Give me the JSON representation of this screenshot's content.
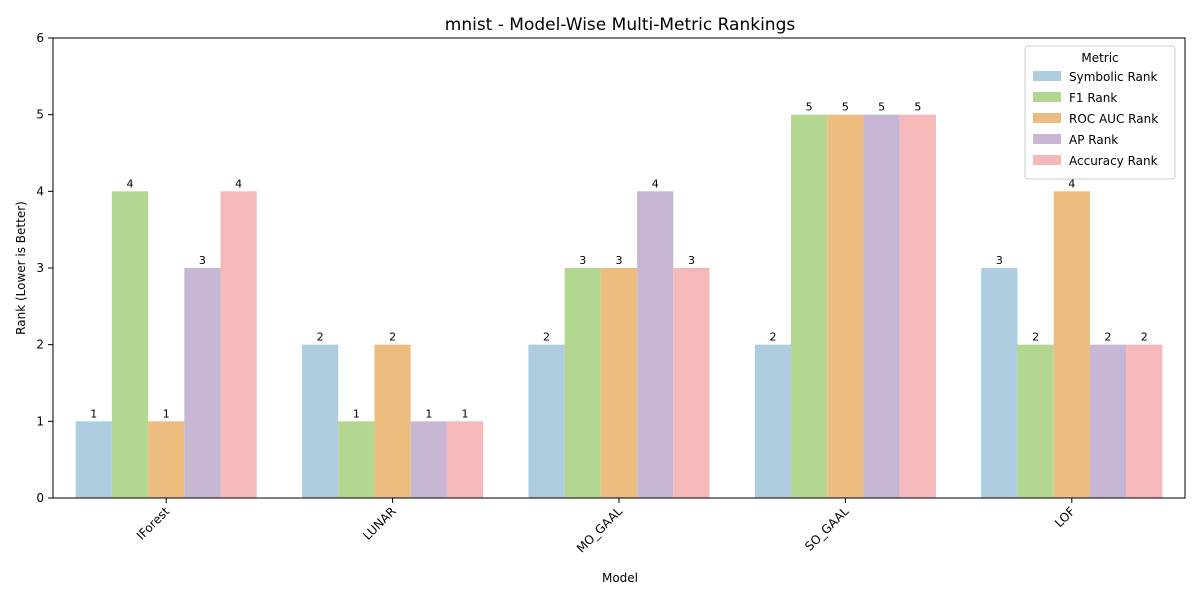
{
  "chart_data": {
    "type": "bar",
    "title": "mnist - Model-Wise Multi-Metric Rankings",
    "xlabel": "Model",
    "ylabel": "Rank (Lower is Better)",
    "ylim": [
      0,
      6
    ],
    "yticks": [
      0,
      1,
      2,
      3,
      4,
      5,
      6
    ],
    "categories": [
      "IForest",
      "LUNAR",
      "MO_GAAL",
      "SO_GAAL",
      "LOF"
    ],
    "series": [
      {
        "name": "Symbolic Rank",
        "color": "#aecde1",
        "values": [
          1,
          2,
          2,
          2,
          3
        ]
      },
      {
        "name": "F1 Rank",
        "color": "#b3d790",
        "values": [
          4,
          1,
          3,
          5,
          2
        ]
      },
      {
        "name": "ROC AUC Rank",
        "color": "#edbd7f",
        "values": [
          1,
          2,
          3,
          5,
          4
        ]
      },
      {
        "name": "AP Rank",
        "color": "#c8b7d4",
        "values": [
          3,
          1,
          4,
          5,
          2
        ]
      },
      {
        "name": "Accuracy Rank",
        "color": "#f6b9b9",
        "values": [
          4,
          1,
          3,
          5,
          2
        ]
      }
    ],
    "legend": {
      "title": "Metric",
      "placement": "top-right"
    },
    "grid": false
  }
}
